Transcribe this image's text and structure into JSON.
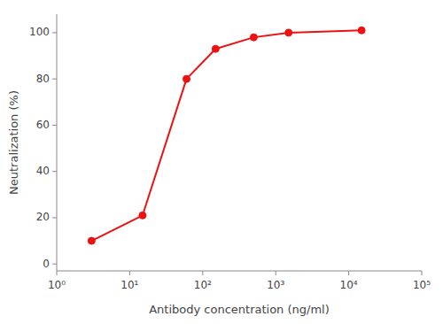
{
  "chart_data": {
    "type": "line",
    "xlabel": "Antibody concentration (ng/ml)",
    "ylabel": "Neutralization (%)",
    "x": [
      3,
      15,
      60,
      150,
      500,
      1500,
      15000
    ],
    "values": [
      10,
      21,
      80,
      93,
      98,
      100,
      101
    ],
    "color": "#ee1111",
    "marker": "circle",
    "log": "x",
    "grid": false,
    "xlim": [
      1,
      100000
    ],
    "ylim": [
      -3,
      108
    ],
    "xticks": [
      {
        "value": 1,
        "label": "10⁰"
      },
      {
        "value": 10,
        "label": "10¹"
      },
      {
        "value": 100,
        "label": "10²"
      },
      {
        "value": 1000,
        "label": "10³"
      },
      {
        "value": 10000,
        "label": "10⁴"
      },
      {
        "value": 100000,
        "label": "10⁵"
      }
    ],
    "yticks": [
      0,
      20,
      40,
      60,
      80,
      100
    ]
  }
}
